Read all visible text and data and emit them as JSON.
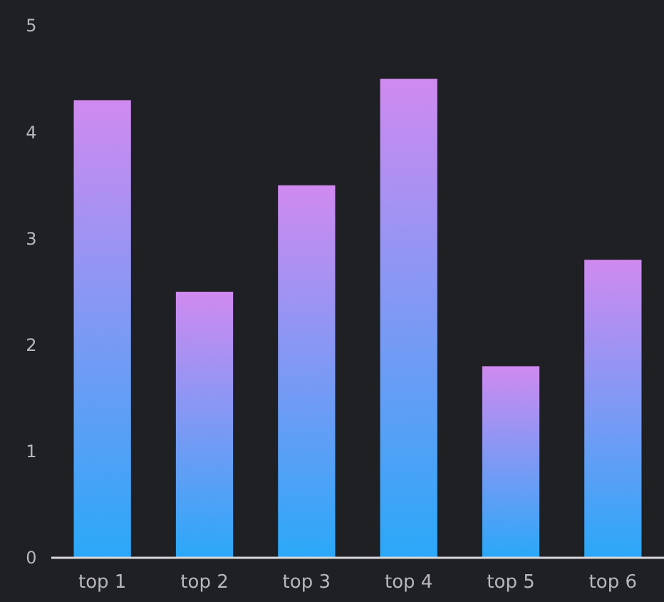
{
  "chart_data": {
    "type": "bar",
    "categories": [
      "top 1",
      "top 2",
      "top 3",
      "top 4",
      "top 5",
      "top 6"
    ],
    "values": [
      4.3,
      2.5,
      3.5,
      4.5,
      1.8,
      2.8
    ],
    "color": "#d08af0",
    "ylim": [
      0,
      5
    ],
    "yticks": [
      0,
      1,
      2,
      3,
      4,
      5
    ],
    "grid": false
  }
}
